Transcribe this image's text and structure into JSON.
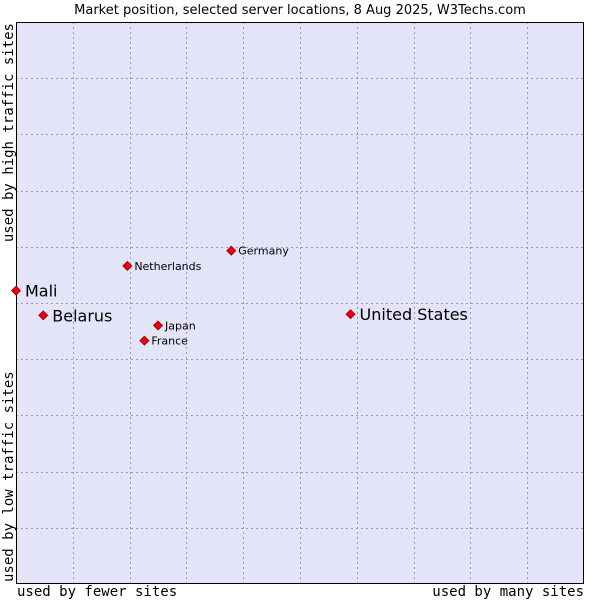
{
  "chart_data": {
    "type": "scatter",
    "title": "Market position, selected server locations, 8 Aug 2025, W3Techs.com",
    "x_axis": {
      "min_label": "used by fewer sites",
      "max_label": "used by many sites",
      "range": [
        0,
        100
      ]
    },
    "y_axis": {
      "min_label": "used by low traffic sites",
      "max_label": "used by high traffic sites",
      "range": [
        0,
        100
      ]
    },
    "grid": true,
    "gridlines": 10,
    "points": [
      {
        "name": "Mali",
        "x": 0,
        "y": 52.2,
        "emphasis": "large"
      },
      {
        "name": "Belarus",
        "x": 4.8,
        "y": 47.8,
        "emphasis": "large"
      },
      {
        "name": "United States",
        "x": 58.9,
        "y": 48.0,
        "emphasis": "large"
      },
      {
        "name": "Netherlands",
        "x": 19.6,
        "y": 56.6,
        "emphasis": "small"
      },
      {
        "name": "Germany",
        "x": 37.9,
        "y": 59.3,
        "emphasis": "small"
      },
      {
        "name": "Japan",
        "x": 25.0,
        "y": 46.0,
        "emphasis": "small"
      },
      {
        "name": "France",
        "x": 22.6,
        "y": 43.3,
        "emphasis": "small"
      }
    ],
    "colors": {
      "plot_bg": "#e3e4f8",
      "marker": "#e8000b",
      "marker_border": "#9a0000",
      "frame": "#000000"
    }
  }
}
